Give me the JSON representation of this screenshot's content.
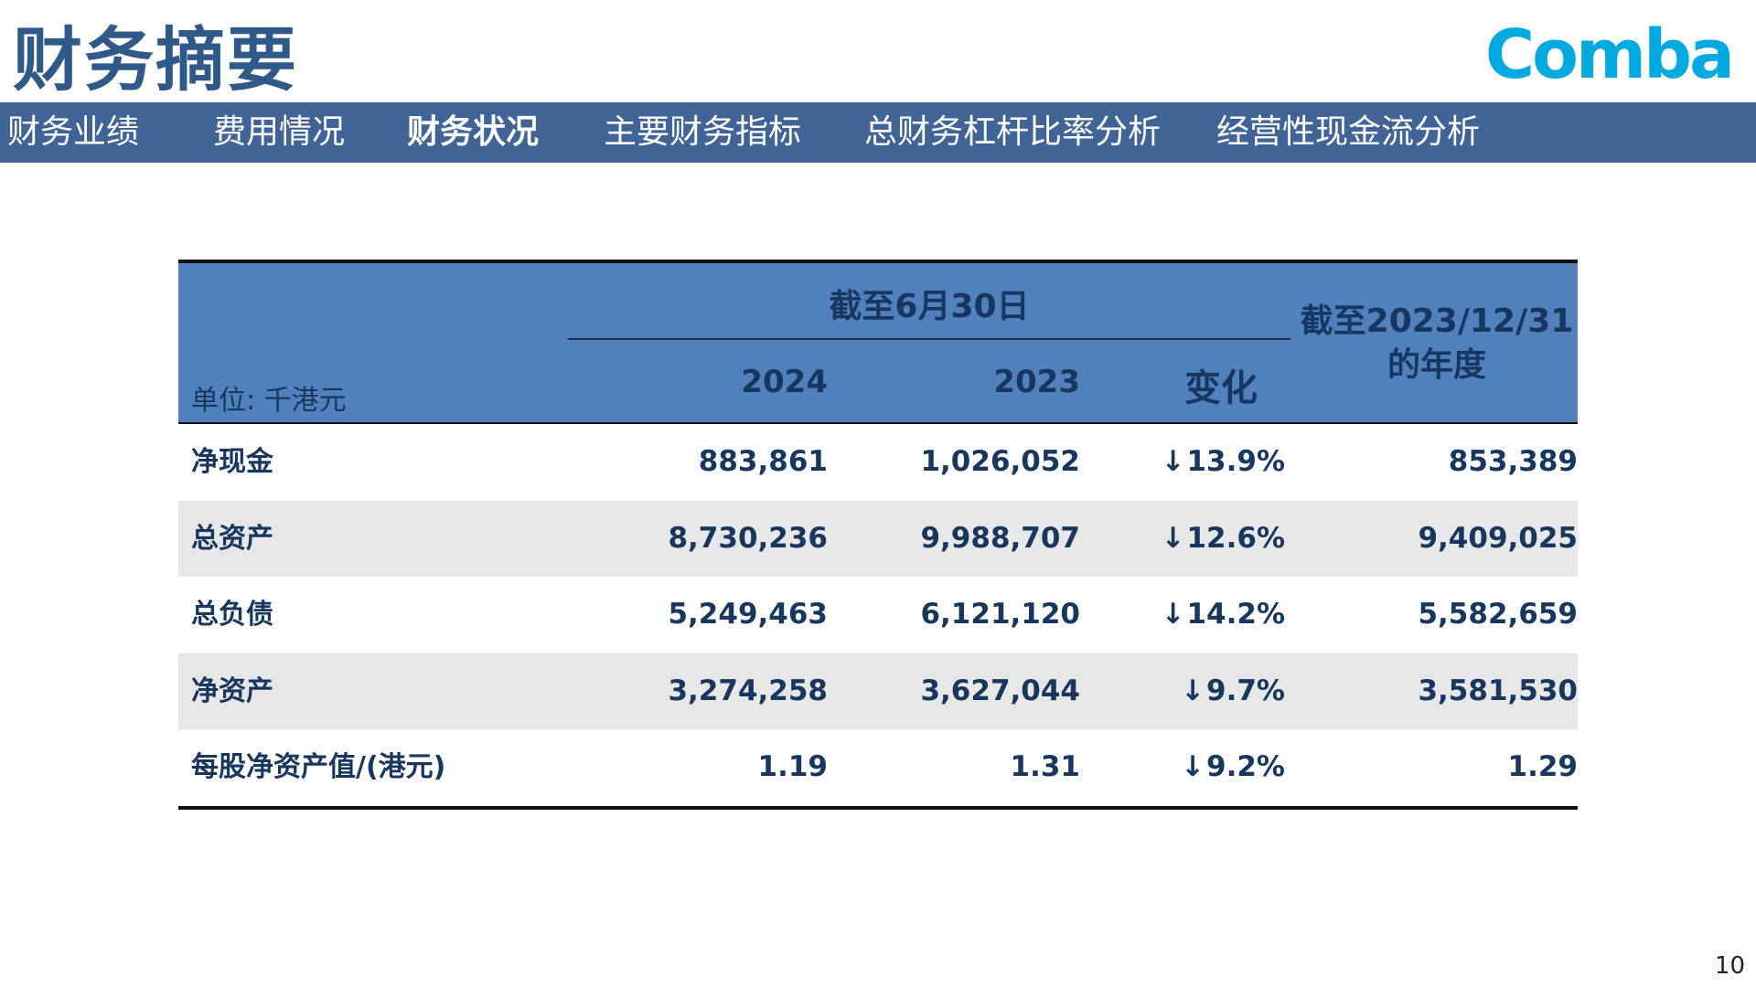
{
  "header": {
    "title": "财务摘要",
    "logo_text": "Comba"
  },
  "nav": {
    "items": [
      {
        "label": "财务业绩"
      },
      {
        "label": "费用情况"
      },
      {
        "label": "财务状况"
      },
      {
        "label": "主要财务指标"
      },
      {
        "label": "总财务杠杆比率分析"
      },
      {
        "label": "经营性现金流分析"
      }
    ],
    "active_index": 2
  },
  "table": {
    "unit_label": "单位: 千港元",
    "group_header": "截至6月30日",
    "col_2024": "2024",
    "col_2023": "2023",
    "col_change": "变化",
    "col_annual": "截至2023/12/31的年度",
    "down_arrow_symbol": "↓",
    "rows": [
      {
        "label": "净现金",
        "v2024": "883,861",
        "v2023": "1,026,052",
        "change": "13.9%",
        "annual": "853,389"
      },
      {
        "label": "总资产",
        "v2024": "8,730,236",
        "v2023": "9,988,707",
        "change": "12.6%",
        "annual": "9,409,025"
      },
      {
        "label": "总负债",
        "v2024": "5,249,463",
        "v2023": "6,121,120",
        "change": "14.2%",
        "annual": "5,582,659"
      },
      {
        "label": "净资产",
        "v2024": "3,274,258",
        "v2023": "3,627,044",
        "change": "9.7%",
        "annual": "3,581,530"
      },
      {
        "label": "每股净资产值/(港元)",
        "v2024": "1.19",
        "v2023": "1.31",
        "change": "9.2%",
        "annual": "1.29"
      }
    ]
  },
  "footer": {
    "page_number": "10"
  },
  "colors": {
    "title": "#2f5989",
    "logo": "#00a9e0",
    "nav_bg": "#3f6495",
    "table_header_bg": "#5081bd",
    "table_text": "#17375e",
    "row_shade": "#e7e7e7"
  }
}
